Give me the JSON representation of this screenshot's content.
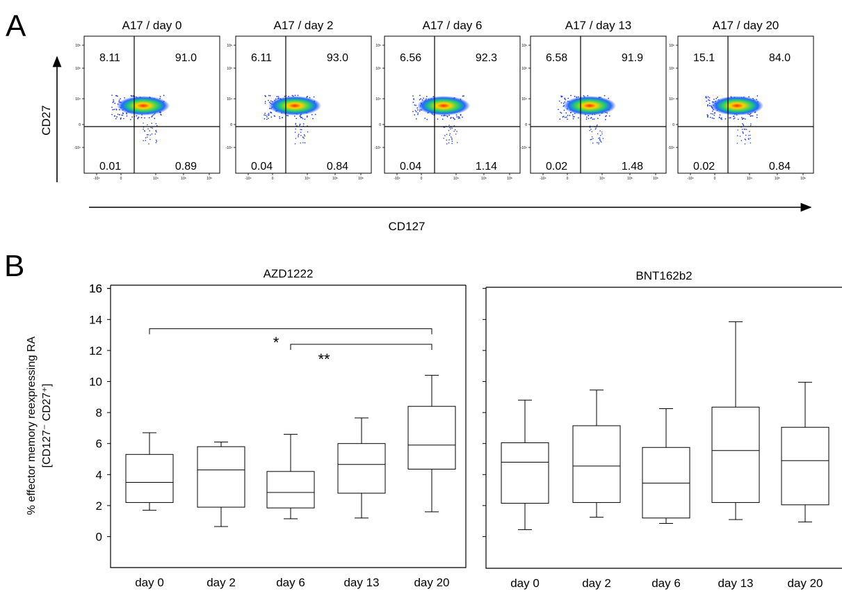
{
  "panel_a": {
    "letter": "A",
    "y_axis_label": "CD27",
    "x_axis_label": "CD127",
    "plots": [
      {
        "title": "A17 / day 0",
        "q_ul": "8.11",
        "q_ur": "91.0",
        "q_ll": "0.01",
        "q_lr": "0.89"
      },
      {
        "title": "A17 / day 2",
        "q_ul": "6.11",
        "q_ur": "93.0",
        "q_ll": "0.04",
        "q_lr": "0.84"
      },
      {
        "title": "A17 / day 6",
        "q_ul": "6.56",
        "q_ur": "92.3",
        "q_ll": "0.04",
        "q_lr": "1.14"
      },
      {
        "title": "A17 / day 13",
        "q_ul": "6.58",
        "q_ur": "91.9",
        "q_ll": "0.02",
        "q_lr": "1.48"
      },
      {
        "title": "A17 / day 20",
        "q_ul": "15.1",
        "q_ur": "84.0",
        "q_ll": "0.02",
        "q_lr": "0.84"
      }
    ]
  },
  "panel_b": {
    "letter": "B",
    "ylabel_line1": "% effector memory reexpressing RA",
    "ylabel_line2": "[CD127⁻ CD27⁺]",
    "significance": [
      "*",
      "**"
    ]
  },
  "chart_data": [
    {
      "type": "box",
      "title": "AZD1222",
      "ylabel": "% effector memory reexpressing RA [CD127⁻ CD27⁺]",
      "ylim": [
        -2,
        16
      ],
      "yticks": [
        0,
        2,
        4,
        6,
        8,
        10,
        12,
        14,
        16
      ],
      "categories": [
        "day 0",
        "day 2",
        "day 6",
        "day 13",
        "day 20"
      ],
      "boxes": [
        {
          "min": 1.7,
          "q1": 2.2,
          "median": 3.5,
          "q3": 5.3,
          "max": 6.7
        },
        {
          "min": 0.65,
          "q1": 1.9,
          "median": 4.3,
          "q3": 5.8,
          "max": 6.1
        },
        {
          "min": 1.15,
          "q1": 1.85,
          "median": 2.85,
          "q3": 4.2,
          "max": 6.6
        },
        {
          "min": 1.2,
          "q1": 2.8,
          "median": 4.65,
          "q3": 6.0,
          "max": 7.65
        },
        {
          "min": 1.6,
          "q1": 4.35,
          "median": 5.9,
          "q3": 8.4,
          "max": 10.4
        }
      ],
      "annotations": [
        {
          "from": "day 0",
          "to": "day 20",
          "y": 13.4,
          "label": "*"
        },
        {
          "from": "day 6",
          "to": "day 20",
          "y": 12.4,
          "label": "**"
        }
      ]
    },
    {
      "type": "box",
      "title": "BNT162b2",
      "ylim": [
        -2,
        16
      ],
      "categories": [
        "day 0",
        "day 2",
        "day 6",
        "day 13",
        "day 20"
      ],
      "boxes": [
        {
          "min": 0.45,
          "q1": 2.15,
          "median": 4.8,
          "q3": 6.05,
          "max": 8.8
        },
        {
          "min": 1.25,
          "q1": 2.2,
          "median": 4.55,
          "q3": 7.15,
          "max": 9.45
        },
        {
          "min": 0.85,
          "q1": 1.2,
          "median": 3.45,
          "q3": 5.75,
          "max": 8.25
        },
        {
          "min": 1.1,
          "q1": 2.2,
          "median": 5.55,
          "q3": 8.35,
          "max": 13.85
        },
        {
          "min": 0.95,
          "q1": 2.05,
          "median": 4.9,
          "q3": 7.05,
          "max": 9.95
        }
      ]
    }
  ]
}
